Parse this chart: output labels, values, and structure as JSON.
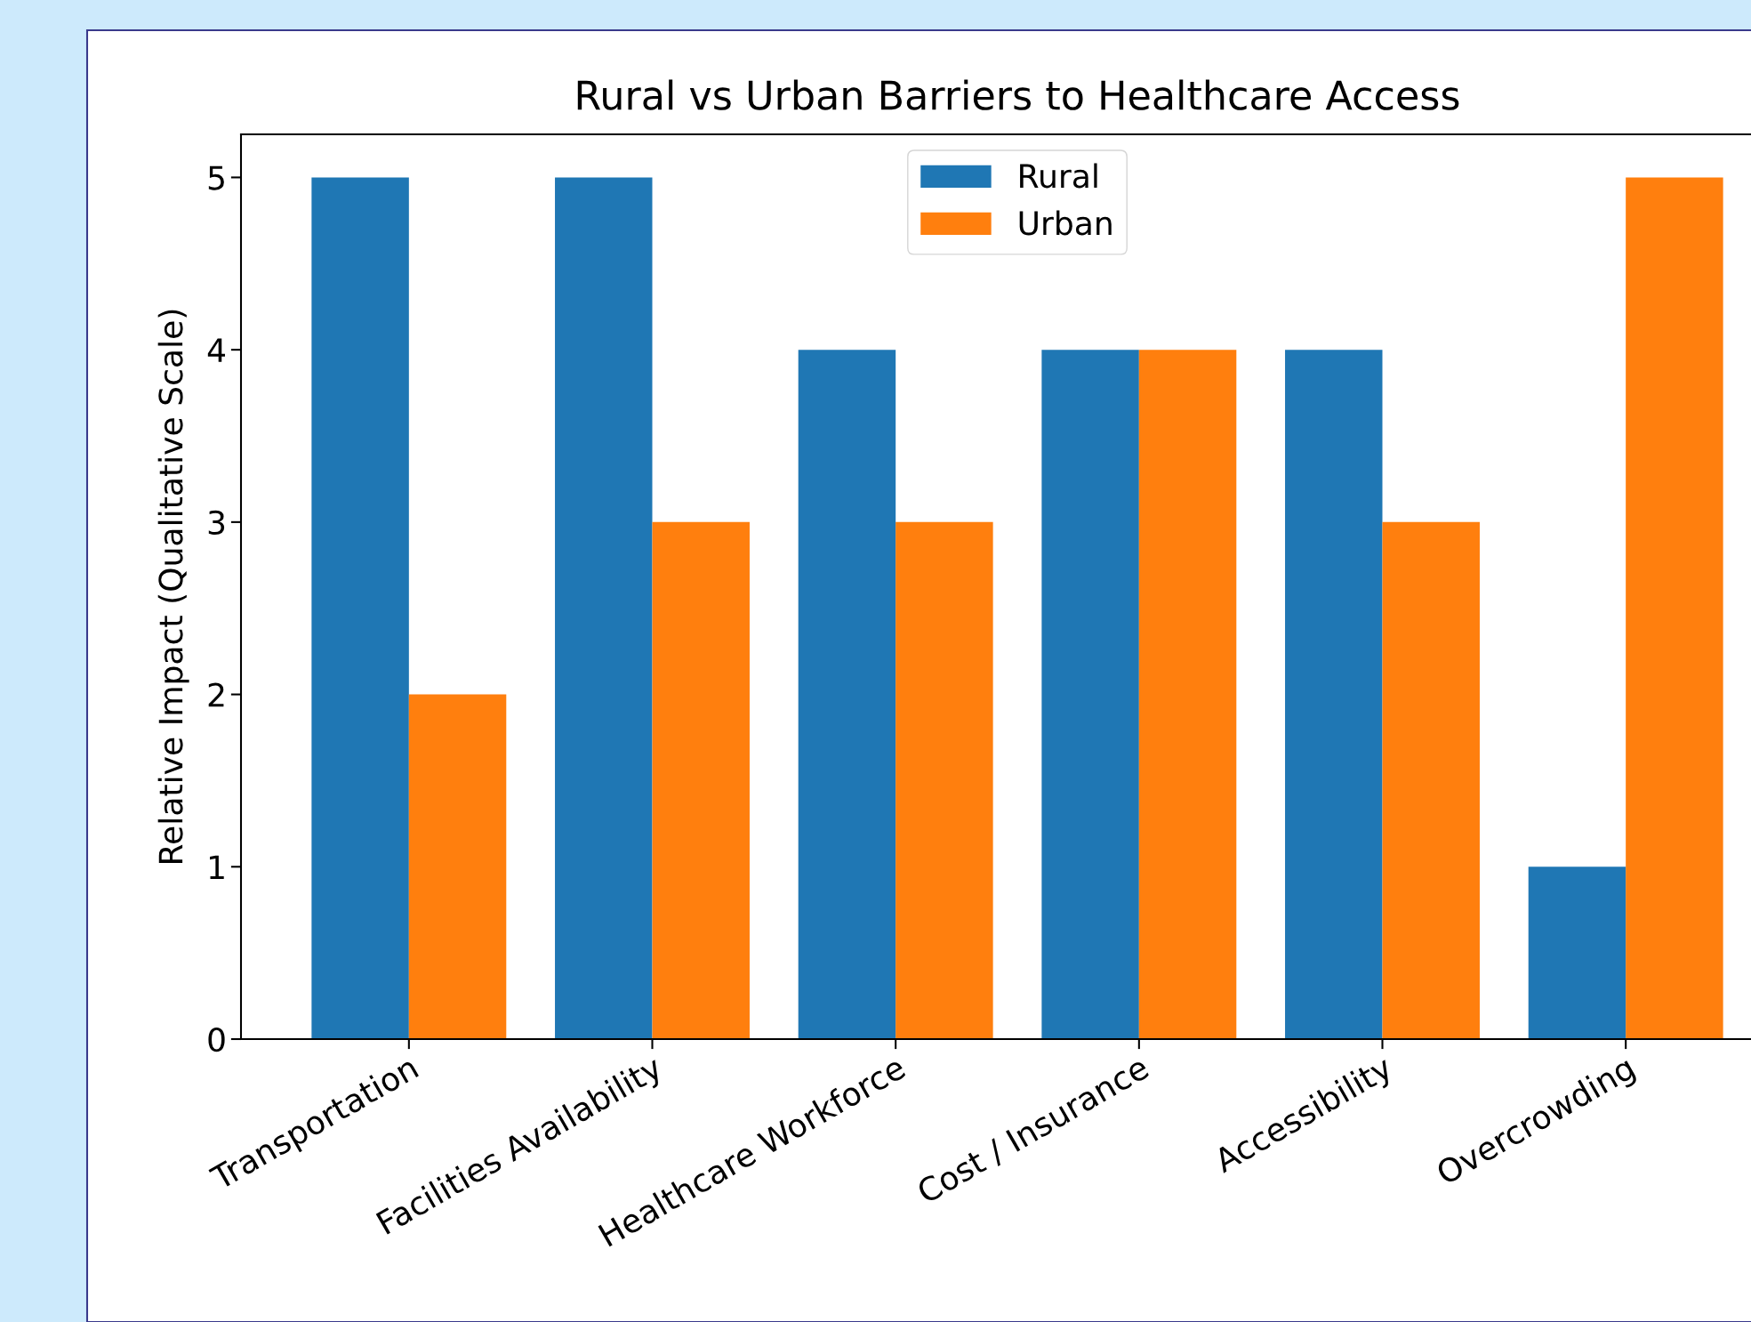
{
  "chart_data": {
    "type": "bar",
    "title": "Rural vs Urban Barriers to Healthcare Access",
    "ylabel": "Relative Impact (Qualitative Scale)",
    "categories": [
      "Transportation",
      "Facilities Availability",
      "Healthcare Workforce",
      "Cost / Insurance",
      "Accessibility",
      "Overcrowding"
    ],
    "series": [
      {
        "name": "Rural",
        "color": "#1f77b4",
        "values": [
          5,
          5,
          4,
          4,
          4,
          1
        ]
      },
      {
        "name": "Urban",
        "color": "#ff7f0e",
        "values": [
          2,
          3,
          3,
          4,
          3,
          5
        ]
      }
    ],
    "ylim": [
      0,
      5.25
    ],
    "yticks": [
      0,
      1,
      2,
      3,
      4,
      5
    ],
    "grid": false,
    "legend": "top"
  }
}
